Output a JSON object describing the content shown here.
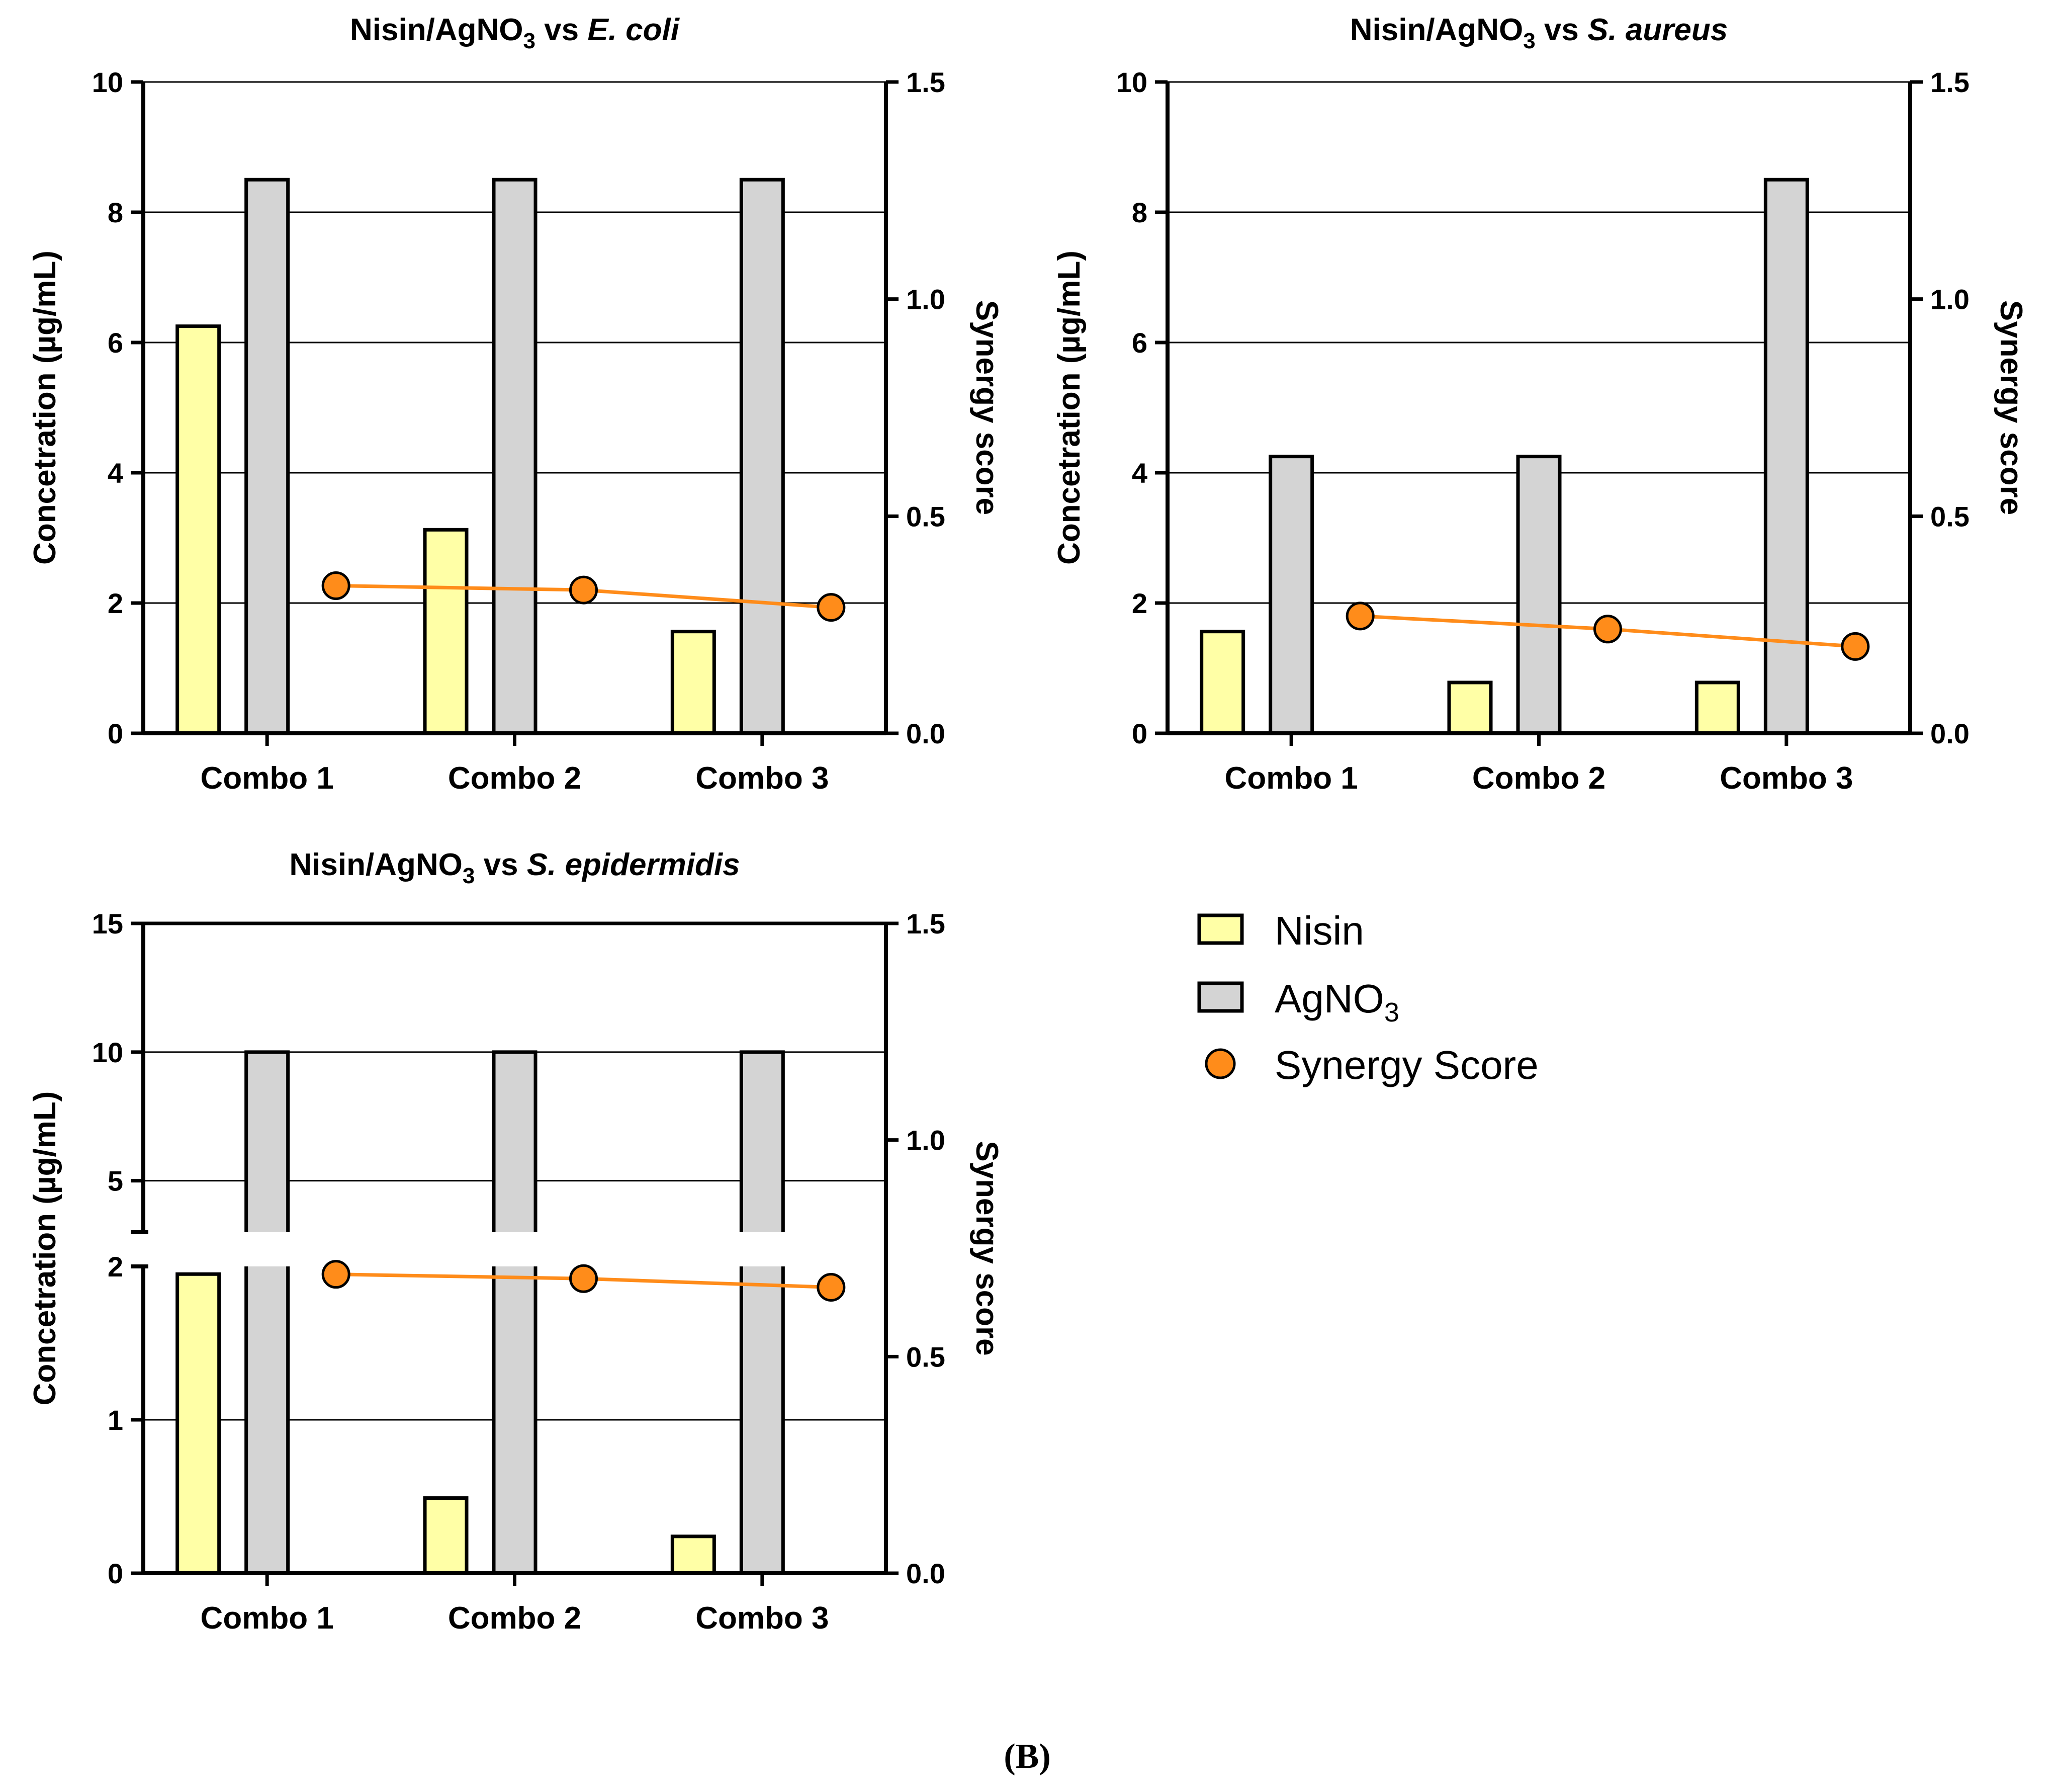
{
  "figure": {
    "panel_label": "(B)"
  },
  "legend": {
    "nisin": "Nisin",
    "agno3_base": "AgNO",
    "agno3_sub": "3",
    "synergy": "Synergy Score"
  },
  "colors": {
    "nisin": "#ffffa6",
    "agno3": "#d4d4d4",
    "synergy": "#ff8c1a",
    "bar_stroke": "#000000"
  },
  "chart_data": [
    {
      "type": "bar",
      "title_prefix": "Nisin/AgNO",
      "title_sub": "3",
      "title_mid": " vs ",
      "title_organism": "E. coli",
      "categories": [
        "Combo 1",
        "Combo 2",
        "Combo 3"
      ],
      "series": [
        {
          "name": "Nisin",
          "values": [
            6.25,
            3.125,
            1.5625
          ]
        },
        {
          "name": "AgNO3",
          "values": [
            8.5,
            8.5,
            8.5
          ]
        }
      ],
      "line_series": {
        "name": "Synergy Score",
        "axis": "right",
        "values": [
          0.34,
          0.33,
          0.29
        ]
      },
      "ylabel": "Concetration (µg/mL)",
      "ylabel_right": "Synergy score",
      "ylim": [
        0,
        10
      ],
      "yticks": [
        "0",
        "2",
        "4",
        "6",
        "8",
        "10"
      ],
      "y2lim": [
        0,
        1.5
      ],
      "y2ticks": [
        "0.0",
        "0.5",
        "1.0",
        "1.5"
      ]
    },
    {
      "type": "bar",
      "title_prefix": "Nisin/AgNO",
      "title_sub": "3",
      "title_mid": " vs ",
      "title_organism": "S. aureus",
      "categories": [
        "Combo 1",
        "Combo 2",
        "Combo 3"
      ],
      "series": [
        {
          "name": "Nisin",
          "values": [
            1.5625,
            0.78,
            0.78
          ]
        },
        {
          "name": "AgNO3",
          "values": [
            4.25,
            4.25,
            8.5
          ]
        }
      ],
      "line_series": {
        "name": "Synergy Score",
        "axis": "right",
        "values": [
          0.27,
          0.24,
          0.2
        ]
      },
      "ylabel": "Concetration (µg/mL)",
      "ylabel_right": "Synergy score",
      "ylim": [
        0,
        10
      ],
      "yticks": [
        "0",
        "2",
        "4",
        "6",
        "8",
        "10"
      ],
      "y2lim": [
        0,
        1.5
      ],
      "y2ticks": [
        "0.0",
        "0.5",
        "1.0",
        "1.5"
      ]
    },
    {
      "type": "bar",
      "title_prefix": "Nisin/AgNO",
      "title_sub": "3",
      "title_mid": " vs ",
      "title_organism": "S. epidermidis",
      "categories": [
        "Combo 1",
        "Combo 2",
        "Combo 3"
      ],
      "series": [
        {
          "name": "Nisin",
          "values": [
            1.95,
            0.49,
            0.24
          ]
        },
        {
          "name": "AgNO3",
          "values": [
            10,
            10,
            10
          ]
        }
      ],
      "line_series": {
        "name": "Synergy Score",
        "axis": "right",
        "values": [
          0.69,
          0.68,
          0.66
        ]
      },
      "ylabel": "Concetration (µg/mL)",
      "ylabel_right": "Synergy score",
      "ylim": [
        0,
        15
      ],
      "y_break": [
        2,
        3
      ],
      "yticks_lower": [
        "0",
        "1",
        "2"
      ],
      "yticks_upper": [
        "5",
        "10",
        "15"
      ],
      "y2lim": [
        0,
        1.5
      ],
      "y2ticks": [
        "0.0",
        "0.5",
        "1.0",
        "1.5"
      ]
    }
  ]
}
